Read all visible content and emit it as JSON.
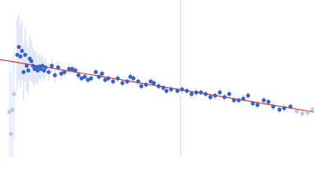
{
  "chart_data": {
    "type": "scatter",
    "xlim": [
      0,
      400
    ],
    "ylim": [
      200,
      0
    ],
    "series": [
      {
        "color": "#3a63c0",
        "error_color": "#c5d2ec",
        "x": [
          22,
          24,
          26,
          28,
          30,
          32,
          34,
          36,
          38,
          40,
          42,
          44,
          46,
          48,
          50,
          52,
          54,
          56,
          58,
          62,
          66,
          70,
          74,
          78,
          82,
          88,
          92,
          96,
          100,
          104,
          108,
          112,
          116,
          122,
          126,
          130,
          134,
          138,
          144,
          150,
          156,
          162,
          166,
          170,
          176,
          180,
          186,
          192,
          196,
          202,
          208,
          212,
          218,
          226,
          232,
          238,
          244,
          250,
          256,
          262,
          268,
          274,
          280,
          286,
          292,
          298,
          304,
          310,
          316,
          322,
          328,
          336,
          342,
          348,
          356,
          362,
          370
        ],
        "values": [
          70,
          60,
          72,
          65,
          92,
          70,
          84,
          90,
          75,
          78,
          84,
          88,
          86,
          90,
          85,
          88,
          84,
          90,
          86,
          92,
          84,
          96,
          86,
          94,
          92,
          88,
          88,
          90,
          96,
          100,
          98,
          102,
          100,
          92,
          98,
          94,
          102,
          100,
          104,
          100,
          106,
          104,
          98,
          100,
          104,
          110,
          108,
          104,
          106,
          110,
          112,
          116,
          114,
          116,
          114,
          116,
          120,
          118,
          118,
          120,
          124,
          122,
          118,
          124,
          120,
          128,
          128,
          126,
          122,
          132,
          134,
          128,
          130,
          136,
          140,
          138,
          136
        ],
        "errors": [
          45,
          42,
          40,
          38,
          36,
          34,
          32,
          30,
          28,
          26,
          24,
          22,
          20,
          18,
          16,
          15,
          14,
          13,
          12,
          11,
          10,
          9,
          8,
          8,
          7,
          7,
          6,
          6,
          6,
          5,
          5,
          5,
          5,
          5,
          5,
          5,
          5,
          5,
          5,
          5,
          5,
          5,
          5,
          5,
          5,
          5,
          5,
          5,
          5,
          5,
          5,
          5,
          5,
          5,
          5,
          5,
          5,
          5,
          5,
          5,
          5,
          5,
          5,
          5,
          5,
          5,
          5,
          5,
          5,
          5,
          5,
          5,
          5,
          5,
          5,
          5,
          5
        ]
      },
      {
        "color": "#b8c8e8",
        "error_color": "#dbe3f3",
        "x": [
          12,
          14,
          16,
          18,
          378,
          385,
          392,
          398
        ],
        "values": [
          143,
          171,
          140,
          120,
          142,
          145,
          144,
          140
        ],
        "errors": [
          70,
          80,
          70,
          60,
          4,
          4,
          4,
          4
        ]
      }
    ],
    "fit": {
      "x": [
        0,
        400
      ],
      "values": [
        76,
        143
      ],
      "color": "#e03030"
    },
    "vline": {
      "x": 230,
      "color": "#c9d6ea"
    }
  }
}
